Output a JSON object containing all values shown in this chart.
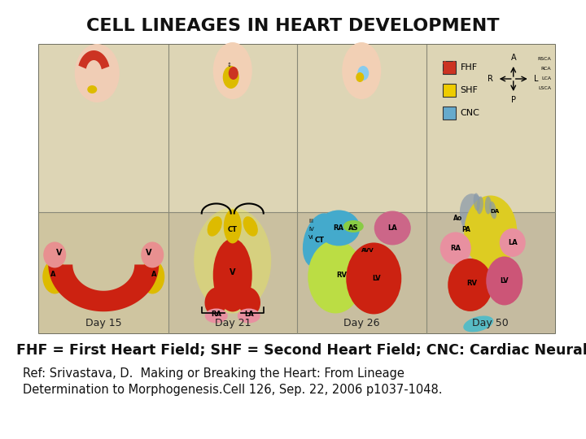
{
  "title": "CELL LINEAGES IN HEART DEVELOPMENT",
  "title_fontsize": 16,
  "title_fontweight": "bold",
  "subtitle_bold": "FHF = First Heart Field; SHF = Second Heart Field; CNC: Cardiac Neural Crest",
  "subtitle_bold_fontsize": 12.5,
  "ref_line1": "Ref: Srivastava, D.  Making or Breaking the Heart: From Lineage",
  "ref_line2": "Determination to Morphogenesis.Cell 126, Sep. 22, 2006 p1037-1048.",
  "ref_fontsize": 10.5,
  "background_color": "#ffffff",
  "panel_bg_top": "#ddd5b8",
  "panel_bg_bottom": "#cfc5a0",
  "border_color": "#555544",
  "days": [
    "Day 15",
    "Day 21",
    "Day 26",
    "Day 50"
  ],
  "day_fontsize": 9
}
